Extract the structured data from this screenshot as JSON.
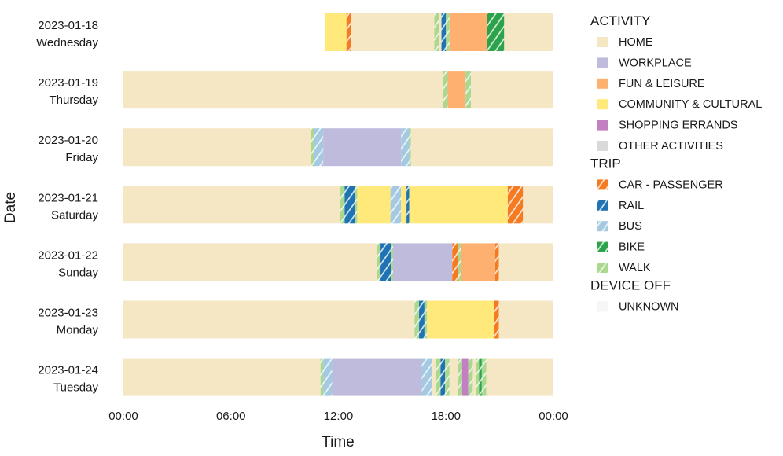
{
  "chart_data": {
    "type": "timeline",
    "xlabel": "Time",
    "ylabel": "Date",
    "xlim": [
      0,
      24
    ],
    "x_ticks": [
      {
        "value": 0,
        "label": "00:00"
      },
      {
        "value": 6,
        "label": "06:00"
      },
      {
        "value": 12,
        "label": "12:00"
      },
      {
        "value": 18,
        "label": "18:00"
      },
      {
        "value": 24,
        "label": "00:00"
      }
    ],
    "colors": {
      "HOME": "#f5e6c4",
      "WORKPLACE": "#bebbdc",
      "FUN & LEISURE": "#fdb06f",
      "COMMUNITY & CULTURAL": "#fee97a",
      "SHOPPING ERRANDS": "#c27fc2",
      "OTHER ACTIVITIES": "#d9d9d9",
      "CAR - PASSENGER": "#f57b22",
      "RAIL": "#1f73b4",
      "BUS": "#a4c9e0",
      "BIKE": "#2ca24a",
      "WALK": "#a9d88e",
      "UNKNOWN": "#f6f6f6"
    },
    "legend": {
      "position": "right",
      "groups": [
        {
          "title": "ACTIVITY",
          "items": [
            "HOME",
            "WORKPLACE",
            "FUN & LEISURE",
            "COMMUNITY & CULTURAL",
            "SHOPPING ERRANDS",
            "OTHER ACTIVITIES"
          ]
        },
        {
          "title": "TRIP",
          "items": [
            "CAR - PASSENGER",
            "RAIL",
            "BUS",
            "BIKE",
            "WALK"
          ]
        },
        {
          "title": "DEVICE OFF",
          "items": [
            "UNKNOWN"
          ]
        }
      ]
    },
    "days": [
      {
        "date": "2023-01-18",
        "weekday": "Wednesday",
        "segments": [
          {
            "start": 11.25,
            "end": 12.45,
            "category": "COMMUNITY & CULTURAL"
          },
          {
            "start": 12.45,
            "end": 12.7,
            "category": "CAR - PASSENGER"
          },
          {
            "start": 12.7,
            "end": 17.35,
            "category": "HOME"
          },
          {
            "start": 17.35,
            "end": 17.6,
            "category": "WALK"
          },
          {
            "start": 17.6,
            "end": 17.75,
            "category": "HOME"
          },
          {
            "start": 17.75,
            "end": 18.0,
            "category": "RAIL"
          },
          {
            "start": 18.0,
            "end": 18.2,
            "category": "WALK"
          },
          {
            "start": 18.2,
            "end": 20.3,
            "category": "FUN & LEISURE"
          },
          {
            "start": 20.3,
            "end": 21.25,
            "category": "BIKE"
          },
          {
            "start": 21.25,
            "end": 24.0,
            "category": "HOME"
          }
        ]
      },
      {
        "date": "2023-01-19",
        "weekday": "Thursday",
        "segments": [
          {
            "start": 0.0,
            "end": 17.85,
            "category": "HOME"
          },
          {
            "start": 17.85,
            "end": 18.1,
            "category": "WALK"
          },
          {
            "start": 18.1,
            "end": 19.1,
            "category": "FUN & LEISURE"
          },
          {
            "start": 19.1,
            "end": 19.4,
            "category": "WALK"
          },
          {
            "start": 19.4,
            "end": 24.0,
            "category": "HOME"
          }
        ]
      },
      {
        "date": "2023-01-20",
        "weekday": "Friday",
        "segments": [
          {
            "start": 0.0,
            "end": 10.45,
            "category": "HOME"
          },
          {
            "start": 10.45,
            "end": 10.65,
            "category": "WALK"
          },
          {
            "start": 10.65,
            "end": 11.15,
            "category": "BUS"
          },
          {
            "start": 11.15,
            "end": 15.5,
            "category": "WORKPLACE"
          },
          {
            "start": 15.5,
            "end": 15.95,
            "category": "BUS"
          },
          {
            "start": 15.95,
            "end": 16.05,
            "category": "WALK"
          },
          {
            "start": 16.05,
            "end": 24.0,
            "category": "HOME"
          }
        ]
      },
      {
        "date": "2023-01-21",
        "weekday": "Saturday",
        "segments": [
          {
            "start": 0.0,
            "end": 12.1,
            "category": "HOME"
          },
          {
            "start": 12.1,
            "end": 12.35,
            "category": "WALK"
          },
          {
            "start": 12.35,
            "end": 12.95,
            "category": "RAIL"
          },
          {
            "start": 12.95,
            "end": 13.05,
            "category": "WALK"
          },
          {
            "start": 13.05,
            "end": 14.9,
            "category": "COMMUNITY & CULTURAL"
          },
          {
            "start": 14.9,
            "end": 15.5,
            "category": "BUS"
          },
          {
            "start": 15.5,
            "end": 15.8,
            "category": "COMMUNITY & CULTURAL"
          },
          {
            "start": 15.8,
            "end": 15.95,
            "category": "RAIL"
          },
          {
            "start": 15.95,
            "end": 21.45,
            "category": "COMMUNITY & CULTURAL"
          },
          {
            "start": 21.45,
            "end": 22.3,
            "category": "CAR - PASSENGER"
          },
          {
            "start": 22.3,
            "end": 24.0,
            "category": "HOME"
          }
        ]
      },
      {
        "date": "2023-01-22",
        "weekday": "Sunday",
        "segments": [
          {
            "start": 0.0,
            "end": 14.15,
            "category": "HOME"
          },
          {
            "start": 14.15,
            "end": 14.35,
            "category": "WALK"
          },
          {
            "start": 14.35,
            "end": 14.95,
            "category": "RAIL"
          },
          {
            "start": 14.95,
            "end": 15.05,
            "category": "WALK"
          },
          {
            "start": 15.05,
            "end": 18.35,
            "category": "WORKPLACE"
          },
          {
            "start": 18.35,
            "end": 18.65,
            "category": "CAR - PASSENGER"
          },
          {
            "start": 18.65,
            "end": 18.85,
            "category": "WALK"
          },
          {
            "start": 18.85,
            "end": 20.75,
            "category": "FUN & LEISURE"
          },
          {
            "start": 20.75,
            "end": 20.95,
            "category": "CAR - PASSENGER"
          },
          {
            "start": 20.95,
            "end": 24.0,
            "category": "HOME"
          }
        ]
      },
      {
        "date": "2023-01-23",
        "weekday": "Monday",
        "segments": [
          {
            "start": 0.0,
            "end": 16.25,
            "category": "HOME"
          },
          {
            "start": 16.25,
            "end": 16.5,
            "category": "WALK"
          },
          {
            "start": 16.5,
            "end": 16.8,
            "category": "RAIL"
          },
          {
            "start": 16.8,
            "end": 16.95,
            "category": "WALK"
          },
          {
            "start": 16.95,
            "end": 20.7,
            "category": "COMMUNITY & CULTURAL"
          },
          {
            "start": 20.7,
            "end": 20.95,
            "category": "CAR - PASSENGER"
          },
          {
            "start": 20.95,
            "end": 24.0,
            "category": "HOME"
          }
        ]
      },
      {
        "date": "2023-01-24",
        "weekday": "Tuesday",
        "segments": [
          {
            "start": 0.0,
            "end": 11.0,
            "category": "HOME"
          },
          {
            "start": 11.0,
            "end": 11.15,
            "category": "WALK"
          },
          {
            "start": 11.15,
            "end": 11.65,
            "category": "BUS"
          },
          {
            "start": 11.65,
            "end": 16.65,
            "category": "WORKPLACE"
          },
          {
            "start": 16.65,
            "end": 17.25,
            "category": "BUS"
          },
          {
            "start": 17.25,
            "end": 17.45,
            "category": "HOME"
          },
          {
            "start": 17.45,
            "end": 17.7,
            "category": "WALK"
          },
          {
            "start": 17.7,
            "end": 17.95,
            "category": "RAIL"
          },
          {
            "start": 17.95,
            "end": 18.2,
            "category": "WALK"
          },
          {
            "start": 18.2,
            "end": 18.65,
            "category": "HOME"
          },
          {
            "start": 18.65,
            "end": 18.9,
            "category": "WALK"
          },
          {
            "start": 18.9,
            "end": 19.25,
            "category": "SHOPPING ERRANDS"
          },
          {
            "start": 19.25,
            "end": 19.5,
            "category": "WALK"
          },
          {
            "start": 19.5,
            "end": 19.7,
            "category": "HOME"
          },
          {
            "start": 19.7,
            "end": 19.85,
            "category": "WALK"
          },
          {
            "start": 19.85,
            "end": 20.0,
            "category": "BIKE"
          },
          {
            "start": 20.0,
            "end": 20.25,
            "category": "WALK"
          },
          {
            "start": 20.25,
            "end": 24.0,
            "category": "HOME"
          }
        ]
      }
    ]
  }
}
